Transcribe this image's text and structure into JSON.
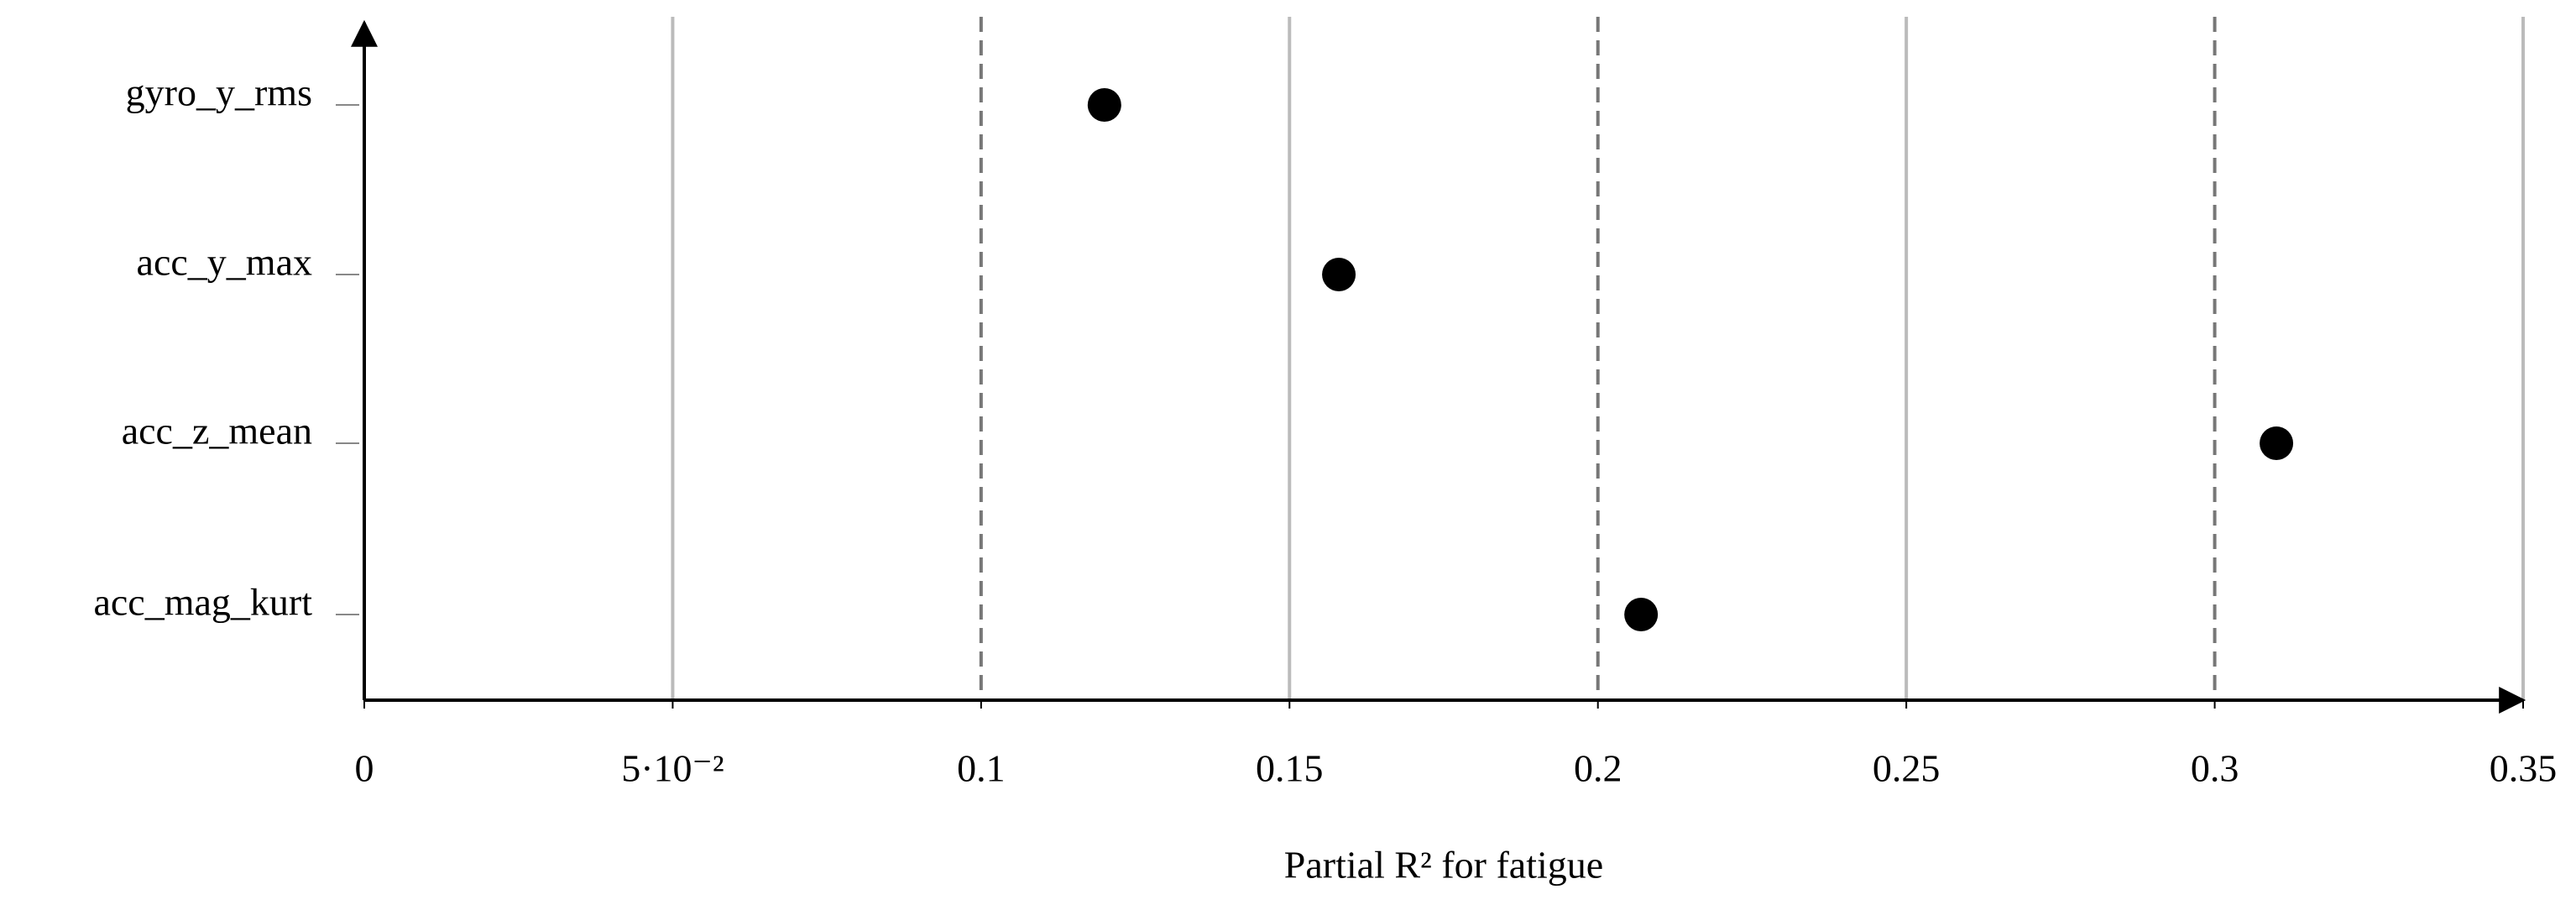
{
  "chart_data": {
    "type": "dot",
    "xlabel": "Partial R² for fatigue",
    "categories": [
      "gyro_y_rms",
      "acc_y_max",
      "acc_z_mean",
      "acc_mag_kurt"
    ],
    "values": [
      0.12,
      0.158,
      0.31,
      0.207
    ],
    "color": "#000000",
    "xlim": [
      0,
      0.35
    ],
    "xticks": [
      0,
      {
        "value": 0.05,
        "label": "5·10⁻²"
      },
      0.1,
      0.15,
      0.2,
      0.25,
      0.3,
      0.35
    ],
    "grid": true
  }
}
